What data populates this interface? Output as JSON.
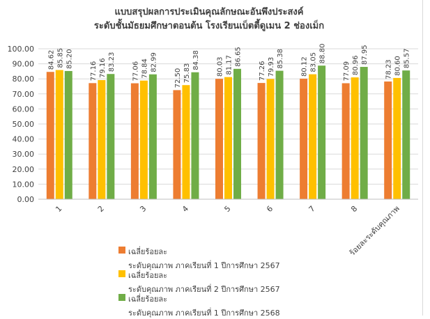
{
  "chart_data": {
    "type": "bar",
    "title": "แบบสรุปผลการประเมินคุณลักษณะอันพึงประสงค์",
    "subtitle": "ระดับชั้นมัธยมศึกษาตอนต้น  โรงเรียนเบ็ตตี้ดูเมน 2 ช่องเม็ก",
    "categories": [
      "1",
      "2",
      "3",
      "4",
      "5",
      "6",
      "7",
      "8",
      "ร้อยละระดับคุณภาพ"
    ],
    "series": [
      {
        "name_line1": "เฉลี่ยร้อยละ",
        "name_line2": "ระดับคุณภาพ  ภาคเรียนที่ 1 ปีการศึกษา 2567",
        "color": "#ED7D31",
        "values": [
          84.62,
          77.16,
          77.06,
          72.5,
          80.03,
          77.26,
          80.12,
          77.09,
          78.23
        ]
      },
      {
        "name_line1": "เฉลี่ยร้อยละ",
        "name_line2": "ระดับคุณภาพ  ภาคเรียนที่ 2 ปีการศึกษา 2567",
        "color": "#FFC000",
        "values": [
          85.85,
          79.16,
          78.84,
          75.83,
          81.17,
          79.93,
          83.05,
          80.96,
          80.6
        ]
      },
      {
        "name_line1": "เฉลี่ยร้อยละ",
        "name_line2": "ระดับคุณภาพ  ภาคเรียนที่ 1 ปีการศึกษา 2568",
        "color": "#70AD47",
        "values": [
          85.2,
          83.23,
          82.99,
          84.38,
          86.65,
          85.38,
          88.8,
          87.95,
          85.57
        ]
      }
    ],
    "ylim": [
      0,
      100
    ],
    "yticks": [
      "0.00",
      "10.00",
      "20.00",
      "30.00",
      "40.00",
      "50.00",
      "60.00",
      "70.00",
      "80.00",
      "90.00",
      "100.00"
    ],
    "grid": true,
    "legend_position": "bottom-left"
  }
}
